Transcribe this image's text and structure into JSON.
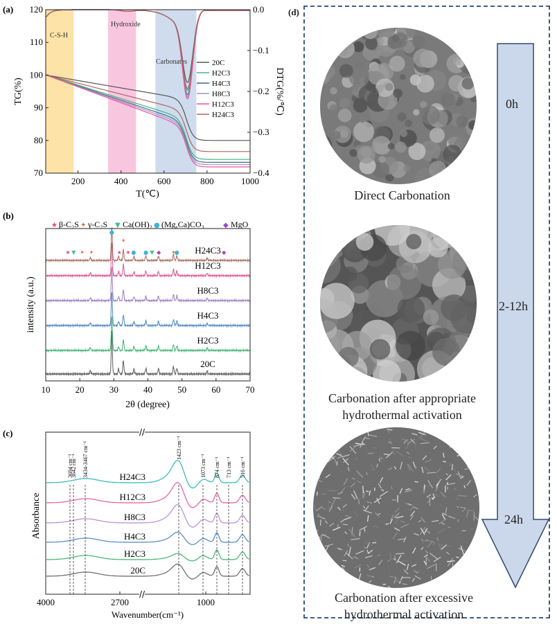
{
  "panel_labels": {
    "a": "(a)",
    "b": "(b)",
    "c": "(c)",
    "d": "(d)"
  },
  "chart_data": [
    {
      "type": "line",
      "panel": "a",
      "xlabel": "T(℃)",
      "ylabel": "TG(%)",
      "y2label": "DTG(%/℃)",
      "xlim": [
        50,
        1000
      ],
      "ylim": [
        70,
        120
      ],
      "y2lim": [
        -0.4,
        0.0
      ],
      "xticks": [
        "200",
        "400",
        "600",
        "800",
        "1000"
      ],
      "yticks": [
        "70",
        "80",
        "90",
        "100",
        "110",
        "120"
      ],
      "y2ticks": [
        "0.0",
        "−0.1",
        "−0.2",
        "−0.3",
        "−0.4"
      ],
      "regions": [
        {
          "label": "C-S-H",
          "x": [
            50,
            180
          ],
          "color": "#fde3a7"
        },
        {
          "label": "Hydroxide",
          "x": [
            340,
            470
          ],
          "color": "#f9c6df"
        },
        {
          "label": "Carbonates",
          "x": [
            560,
            750
          ],
          "color": "#cfdcee"
        }
      ],
      "series": [
        {
          "name": "20C",
          "color": "#555555",
          "tg_final": 80.0,
          "dtg_min": -0.17
        },
        {
          "name": "H2C3",
          "color": "#43b37d",
          "tg_final": 74.2,
          "dtg_min": -0.19
        },
        {
          "name": "H4C3",
          "color": "#3d6b8c",
          "tg_final": 73.3,
          "dtg_min": -0.2
        },
        {
          "name": "H8C3",
          "color": "#a88fc9",
          "tg_final": 72.6,
          "dtg_min": -0.205
        },
        {
          "name": "H12C3",
          "color": "#e8559a",
          "tg_final": 71.9,
          "dtg_min": -0.21
        },
        {
          "name": "H24C3",
          "color": "#a9675c",
          "tg_final": 76.6,
          "dtg_min": -0.185
        }
      ]
    },
    {
      "type": "line",
      "panel": "b",
      "xlabel": "2θ (degree)",
      "ylabel": "intensity (a.u.)",
      "xlim": [
        10,
        70
      ],
      "xticks": [
        "10",
        "20",
        "30",
        "40",
        "50",
        "60",
        "70"
      ],
      "legend": [
        "β-C₂S",
        "γ-C₂S",
        "Ca(OH)₂",
        "(Mg,Ca)CO₃",
        "MgO"
      ],
      "legend_colors": [
        "#e6417f",
        "#e8603f",
        "#3fbf8f",
        "#3cb4d8",
        "#9b46c8"
      ],
      "peaks_2theta": [
        23.1,
        29.4,
        31.4,
        32.8,
        35.9,
        39.4,
        43.1,
        47.5,
        48.5,
        57.4
      ],
      "series": [
        {
          "name": "20C",
          "color": "#5a5a5a"
        },
        {
          "name": "H2C3",
          "color": "#3bb36e"
        },
        {
          "name": "H4C3",
          "color": "#4a86c5"
        },
        {
          "name": "H8C3",
          "color": "#9d7bc4"
        },
        {
          "name": "H12C3",
          "color": "#e0508f"
        },
        {
          "name": "H24C3",
          "color": "#a56a5e"
        }
      ]
    },
    {
      "type": "line",
      "panel": "c",
      "xlabel": "Wavenumber(cm⁻¹)",
      "ylabel": "Absorbance",
      "xticks": [
        "4000",
        "2700",
        "1000"
      ],
      "annotations": [
        "3694 cm⁻¹",
        "3642 cm⁻¹",
        "3434-3467 cm⁻¹",
        "1423 cm⁻¹",
        "1073 cm⁻¹",
        "874 cm⁻¹",
        "713 cm⁻¹",
        "516 cm⁻¹"
      ],
      "series": [
        {
          "name": "20C",
          "color": "#666666"
        },
        {
          "name": "H2C3",
          "color": "#3bb36e"
        },
        {
          "name": "H4C3",
          "color": "#4a86c5"
        },
        {
          "name": "H8C3",
          "color": "#b78ad0"
        },
        {
          "name": "H12C3",
          "color": "#e45a9c"
        },
        {
          "name": "H24C3",
          "color": "#2fb6b6"
        }
      ]
    }
  ],
  "panel_d": {
    "arrow_color": "#c9d6ea",
    "times": [
      "0h",
      "2-12h",
      "24h"
    ],
    "captions": [
      "Direct Carbonation",
      "Carbonation after appropriate hydrothermal activation",
      "Carbonation after excessive hydrothermal activation"
    ]
  }
}
